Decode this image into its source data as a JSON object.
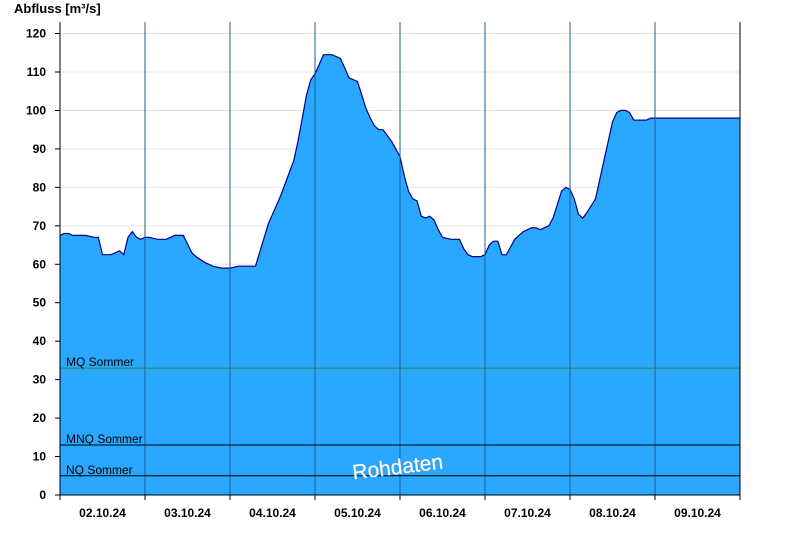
{
  "chart_data": {
    "type": "area",
    "ylabel": "Abfluss [m³/s]",
    "ylim": [
      0,
      123
    ],
    "yticks": [
      0,
      10,
      20,
      30,
      40,
      50,
      60,
      70,
      80,
      90,
      100,
      110,
      120
    ],
    "x_unit": "days",
    "x_start": "01.10.24 03:00",
    "xlim": [
      0,
      8
    ],
    "day_labels": [
      "02.10.24",
      "03.10.24",
      "04.10.24",
      "05.10.24",
      "06.10.24",
      "07.10.24",
      "08.10.24",
      "09.10.24"
    ],
    "grid": true,
    "series": [
      {
        "name": "",
        "color": "#2aa8ff",
        "line_color": "#00008b",
        "x": [
          0.0,
          0.05,
          0.1,
          0.15,
          0.2,
          0.3,
          0.4,
          0.45,
          0.5,
          0.6,
          0.7,
          0.75,
          0.8,
          0.85,
          0.9,
          0.95,
          1.0,
          1.05,
          1.15,
          1.25,
          1.3,
          1.35,
          1.45,
          1.55,
          1.6,
          1.7,
          1.8,
          1.9,
          1.95,
          2.0,
          2.1,
          2.2,
          2.3,
          2.45,
          2.6,
          2.75,
          2.8,
          2.85,
          2.9,
          2.95,
          3.0,
          3.05,
          3.1,
          3.2,
          3.3,
          3.35,
          3.4,
          3.45,
          3.5,
          3.55,
          3.6,
          3.65,
          3.7,
          3.75,
          3.8,
          3.9,
          4.0,
          4.05,
          4.1,
          4.15,
          4.2,
          4.25,
          4.3,
          4.35,
          4.4,
          4.45,
          4.5,
          4.6,
          4.7,
          4.75,
          4.8,
          4.85,
          4.9,
          4.95,
          5.0,
          5.05,
          5.1,
          5.15,
          5.2,
          5.25,
          5.35,
          5.4,
          5.45,
          5.5,
          5.55,
          5.6,
          5.65,
          5.7,
          5.75,
          5.8,
          5.85,
          5.9,
          5.95,
          6.0,
          6.05,
          6.1,
          6.15,
          6.2,
          6.3,
          6.4,
          6.5,
          6.55,
          6.6,
          6.65,
          6.7,
          6.75,
          6.8,
          6.85,
          6.9,
          6.95,
          7.0,
          7.05,
          7.1,
          7.15,
          7.2,
          7.25,
          7.3,
          7.4,
          7.5,
          7.6,
          7.7,
          7.8,
          7.9,
          8.0
        ],
        "y": [
          67.5,
          68,
          68,
          67.5,
          67.5,
          67.5,
          67,
          67,
          62.5,
          62.5,
          63.5,
          62.5,
          67,
          68.5,
          67,
          66.5,
          67,
          67,
          66.5,
          66.5,
          67,
          67.5,
          67.5,
          63,
          62,
          60.5,
          59.5,
          59,
          59,
          59,
          59.5,
          59.5,
          59.5,
          70.5,
          78,
          87,
          92,
          98,
          104,
          108,
          109.5,
          112,
          114.5,
          114.5,
          113.5,
          111,
          108.5,
          108,
          107.5,
          104,
          100.5,
          98,
          96,
          95,
          95,
          92,
          88,
          83,
          79,
          77,
          76.5,
          72.5,
          72,
          72.5,
          71.5,
          69,
          67,
          66.5,
          66.5,
          64,
          62.5,
          62,
          62,
          62,
          62.5,
          65,
          66,
          66,
          62.5,
          62.5,
          66.5,
          67.5,
          68.5,
          69,
          69.5,
          69.5,
          69,
          69.5,
          70,
          72,
          75.5,
          79,
          80,
          79.5,
          77,
          73,
          72,
          73.5,
          77,
          87,
          97,
          99.5,
          100,
          100,
          99.5,
          97.5,
          97.5,
          97.5,
          97.5,
          98,
          98,
          98,
          98,
          98,
          98,
          98,
          98,
          98,
          98,
          98,
          98,
          98,
          98,
          98
        ]
      }
    ],
    "reference_lines": [
      {
        "label": "MQ Sommer",
        "value": 33,
        "color": "#2e8b3a"
      },
      {
        "label": "MNQ Sommer",
        "value": 13,
        "color": "#000000"
      },
      {
        "label": "NQ Sommer",
        "value": 5,
        "color": "#000000"
      }
    ],
    "annotation": "Rohdaten"
  }
}
